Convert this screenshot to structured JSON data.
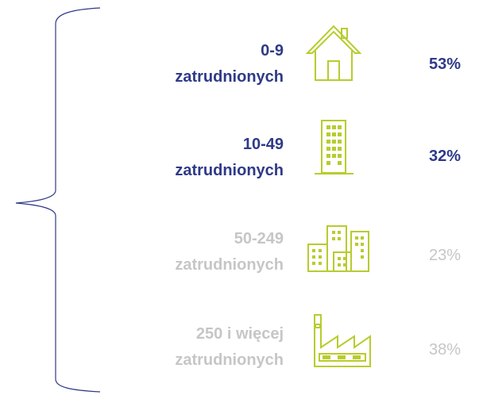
{
  "rows": [
    {
      "range": "0-9",
      "unit": "zatrudnionych",
      "percent": "53%"
    },
    {
      "range": "10-49",
      "unit": "zatrudnionych",
      "percent": "32%"
    },
    {
      "range": "50-249",
      "unit": "zatrudnionych",
      "percent": "23%"
    },
    {
      "range": "250 i więcej",
      "unit": "zatrudnionych",
      "percent": "38%"
    }
  ]
}
